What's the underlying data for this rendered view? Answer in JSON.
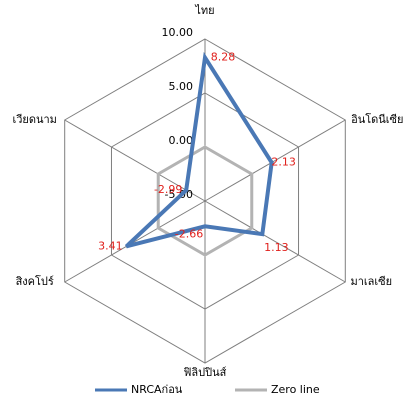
{
  "chart_data": {
    "type": "radar",
    "categories": [
      "ไทย",
      "อินโดนีเซีย",
      "มาเลเซีย",
      "ฟิลิปปินส์",
      "สิงคโปร์",
      "เวียดนาม"
    ],
    "series": [
      {
        "name": "NRCAก่อน",
        "color": "#4a78b5",
        "values": [
          8.28,
          2.13,
          1.13,
          -2.66,
          3.41,
          -2.99
        ]
      },
      {
        "name": "Zero line",
        "color": "#b3b3b3",
        "values": [
          0,
          0,
          0,
          0,
          0,
          0
        ]
      }
    ],
    "ylim": [
      -5,
      10
    ],
    "yticks": [
      {
        "value": -5,
        "label": "-5.00"
      },
      {
        "value": 0,
        "label": "0.00"
      },
      {
        "value": 5,
        "label": "5.00"
      },
      {
        "value": 10,
        "label": "10.00"
      }
    ],
    "grid": true,
    "legend": "bottom"
  }
}
